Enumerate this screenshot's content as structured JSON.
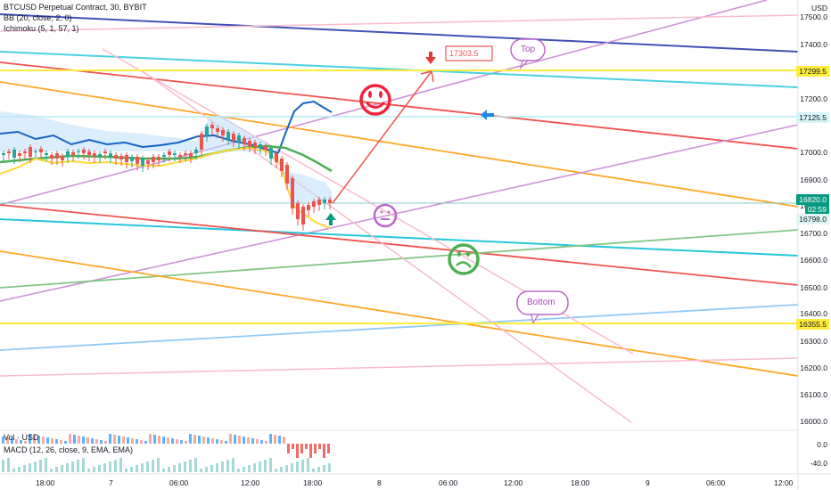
{
  "legend": {
    "title": "BTCUSD Perpetual Contract, 30, BYBIT",
    "bb": "BB (20, close, 2, 0)",
    "ichimoku": "Ichimoku (5, 1, 57, 1)",
    "vol": "Vol · USD",
    "macd": "MACD (12, 26, close, 9, EMA, EMA)"
  },
  "currency": "USD",
  "price_axis": [
    "17500.0",
    "17400.0",
    "17300.0",
    "17200.0",
    "17100.0",
    "17000.0",
    "16900.0",
    "16800.0",
    "16700.0",
    "16600.0",
    "16500.0",
    "16400.0",
    "16300.0",
    "16200.0",
    "16100.0",
    "16000.0"
  ],
  "macd_axis": [
    "0.0",
    "-40.0"
  ],
  "price_tags": {
    "yellow_top": "17299.5",
    "cyan_mid": "17125.5",
    "current": "16820.0",
    "countdown": "02:59",
    "low": "16798.0",
    "yellow_bottom": "16355.5"
  },
  "time_axis": [
    "18:00",
    "7",
    "06:00",
    "12:00",
    "18:00",
    "8",
    "06:00",
    "12:00",
    "18:00",
    "9",
    "06:00",
    "12:00"
  ],
  "annotations": {
    "target_price": "17303.5",
    "top": "Top",
    "bottom": "Bottom"
  },
  "colors": {
    "up": "#26a69a",
    "down": "#ef5350",
    "accent": "#089981",
    "yellow_level": "#ffeb3b"
  }
}
